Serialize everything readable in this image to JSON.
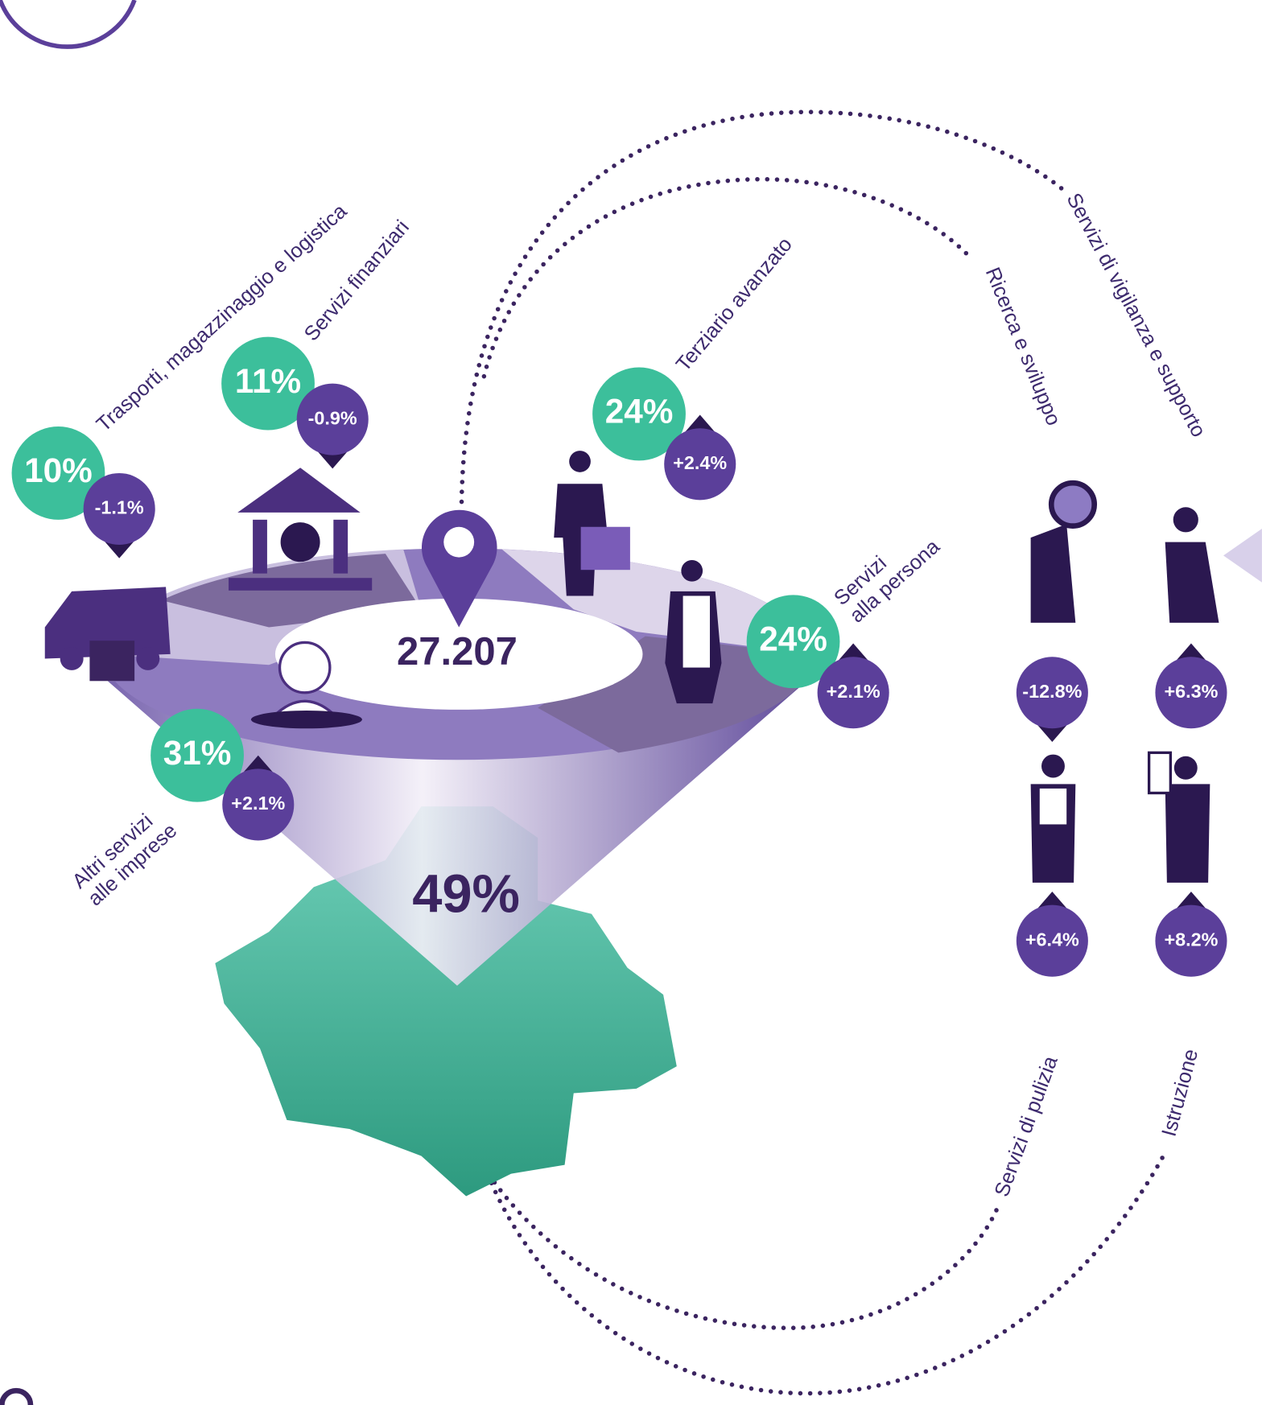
{
  "total": "27.207",
  "region_share": "49%",
  "sectors": [
    {
      "label": [
        "Trasporti, magazzinaggio e logistica"
      ],
      "share": "10%",
      "change": "-1.1%"
    },
    {
      "label": [
        "Servizi finanziari"
      ],
      "share": "11%",
      "change": "-0.9%"
    },
    {
      "label": [
        "Terziario avanzato"
      ],
      "share": "24%",
      "change": "+2.4%"
    },
    {
      "label": [
        "Servizi",
        "alla persona"
      ],
      "share": "24%",
      "change": "+2.1%"
    },
    {
      "label": [
        "Altri servizi",
        "alle imprese"
      ],
      "share": "31%",
      "change": "+2.1%"
    }
  ],
  "subsectors": [
    {
      "label": "Ricerca e sviluppo",
      "change": "-12.8%"
    },
    {
      "label": "Servizi di vigilanza e supporto",
      "change": "+6.3%"
    },
    {
      "label": "Servizi di pulizia",
      "change": "+6.4%"
    },
    {
      "label": "Istruzione",
      "change": "+8.2%"
    }
  ]
}
